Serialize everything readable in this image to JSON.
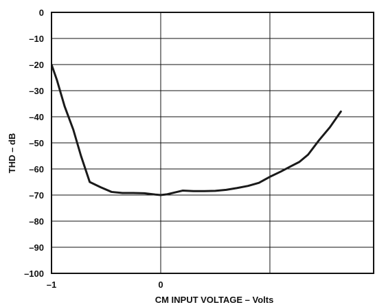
{
  "chart_data": {
    "type": "line",
    "title": "",
    "xlabel": "CM INPUT VOLTAGE – Volts",
    "ylabel": "THD – dB",
    "xlim": [
      -1,
      1.95
    ],
    "ylim": [
      -100,
      0
    ],
    "x_tick_labels": [
      {
        "value": -1,
        "label": "–1"
      },
      {
        "value": 0,
        "label": "0"
      }
    ],
    "x_gridlines": [
      -1,
      0,
      1
    ],
    "y_tick_labels": [
      {
        "value": 0,
        "label": "0"
      },
      {
        "value": -10,
        "label": "–10"
      },
      {
        "value": -20,
        "label": "–20"
      },
      {
        "value": -30,
        "label": "–30"
      },
      {
        "value": -40,
        "label": "–40"
      },
      {
        "value": -50,
        "label": "–50"
      },
      {
        "value": -60,
        "label": "–60"
      },
      {
        "value": -70,
        "label": "–70"
      },
      {
        "value": -80,
        "label": "–80"
      },
      {
        "value": -90,
        "label": "–90"
      },
      {
        "value": -100,
        "label": "–100"
      }
    ],
    "grid": true,
    "legend": "none",
    "line_color": "#1a1a1a",
    "series": [
      {
        "values": [
          {
            "x": -1.0,
            "y": -20
          },
          {
            "x": -0.95,
            "y": -26
          },
          {
            "x": -0.88,
            "y": -36
          },
          {
            "x": -0.8,
            "y": -45
          },
          {
            "x": -0.73,
            "y": -55
          },
          {
            "x": -0.65,
            "y": -65
          },
          {
            "x": -0.55,
            "y": -67
          },
          {
            "x": -0.45,
            "y": -68.8
          },
          {
            "x": -0.35,
            "y": -69.2
          },
          {
            "x": -0.25,
            "y": -69.2
          },
          {
            "x": -0.15,
            "y": -69.3
          },
          {
            "x": -0.05,
            "y": -69.8
          },
          {
            "x": 0.0,
            "y": -70
          },
          {
            "x": 0.06,
            "y": -69.7
          },
          {
            "x": 0.13,
            "y": -69.0
          },
          {
            "x": 0.2,
            "y": -68.3
          },
          {
            "x": 0.3,
            "y": -68.5
          },
          {
            "x": 0.4,
            "y": -68.5
          },
          {
            "x": 0.5,
            "y": -68.4
          },
          {
            "x": 0.6,
            "y": -68.0
          },
          {
            "x": 0.7,
            "y": -67.3
          },
          {
            "x": 0.8,
            "y": -66.5
          },
          {
            "x": 0.9,
            "y": -65.3
          },
          {
            "x": 1.0,
            "y": -63.0
          },
          {
            "x": 1.1,
            "y": -61.0
          },
          {
            "x": 1.2,
            "y": -58.8
          },
          {
            "x": 1.27,
            "y": -57.3
          },
          {
            "x": 1.35,
            "y": -54.5
          },
          {
            "x": 1.45,
            "y": -49
          },
          {
            "x": 1.55,
            "y": -44
          },
          {
            "x": 1.65,
            "y": -38
          }
        ]
      }
    ]
  }
}
